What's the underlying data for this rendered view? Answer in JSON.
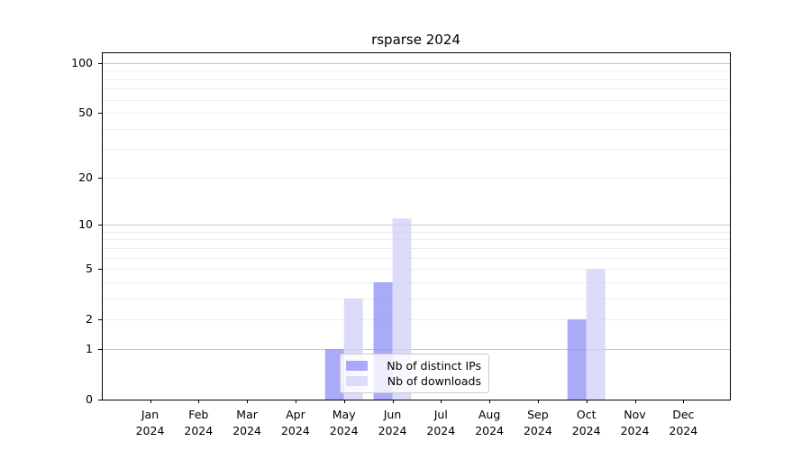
{
  "chart_data": {
    "type": "bar",
    "title": "rsparse 2024",
    "categories": [
      "Jan 2024",
      "Feb 2024",
      "Mar 2024",
      "Apr 2024",
      "May 2024",
      "Jun 2024",
      "Jul 2024",
      "Aug 2024",
      "Sep 2024",
      "Oct 2024",
      "Nov 2024",
      "Dec 2024"
    ],
    "series": [
      {
        "name": "Nb of distinct IPs",
        "color": "#8e8ef7",
        "alpha": 0.75,
        "values": [
          0,
          0,
          0,
          0,
          1,
          4,
          0,
          0,
          0,
          2,
          0,
          0
        ]
      },
      {
        "name": "Nb of downloads",
        "color": "#d0d0f8",
        "alpha": 0.75,
        "values": [
          0,
          0,
          0,
          0,
          3,
          11,
          0,
          0,
          0,
          5,
          0,
          0
        ]
      }
    ],
    "xlabel": "",
    "ylabel": "",
    "yscale": "log1p",
    "ylim": [
      0,
      100
    ],
    "yticks": [
      0,
      1,
      2,
      5,
      10,
      20,
      50,
      100
    ],
    "grid": "horizontal, minor 2-9 and 20-90, major 1/10/100",
    "legend_position": "bottom-center inside plot",
    "colors": {
      "grid_minor": "#ededed",
      "grid_major": "#c8c8c8",
      "spine": "#000000",
      "tick": "#000000",
      "text": "#000000",
      "legend_border": "#cccccc"
    }
  }
}
